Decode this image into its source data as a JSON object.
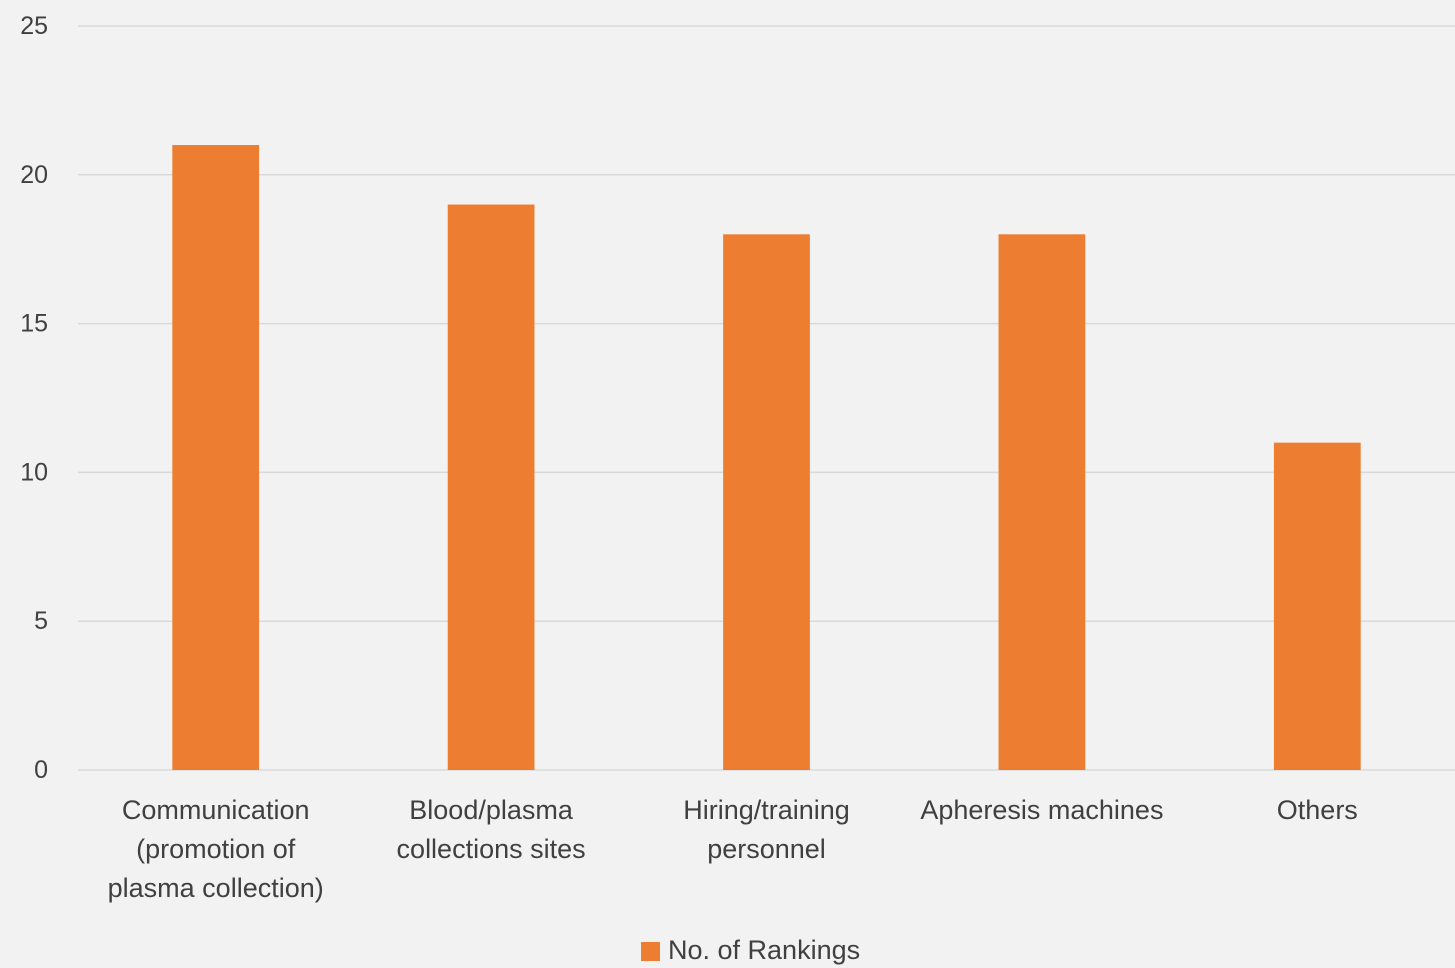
{
  "chart_data": {
    "type": "bar",
    "categories": [
      [
        "Communication",
        "(promotion of",
        "plasma collection)"
      ],
      [
        "Blood/plasma",
        "collections sites"
      ],
      [
        "Hiring/training",
        "personnel"
      ],
      [
        "Apheresis machines"
      ],
      [
        "Others"
      ]
    ],
    "series": [
      {
        "name": "No. of Rankings",
        "color": "#ed7d31",
        "values": [
          21,
          19,
          18,
          18,
          11
        ]
      }
    ],
    "ylim": [
      0,
      25
    ],
    "yticks": [
      0,
      5,
      10,
      15,
      20,
      25
    ],
    "grid": true,
    "legend_position": "bottom"
  }
}
